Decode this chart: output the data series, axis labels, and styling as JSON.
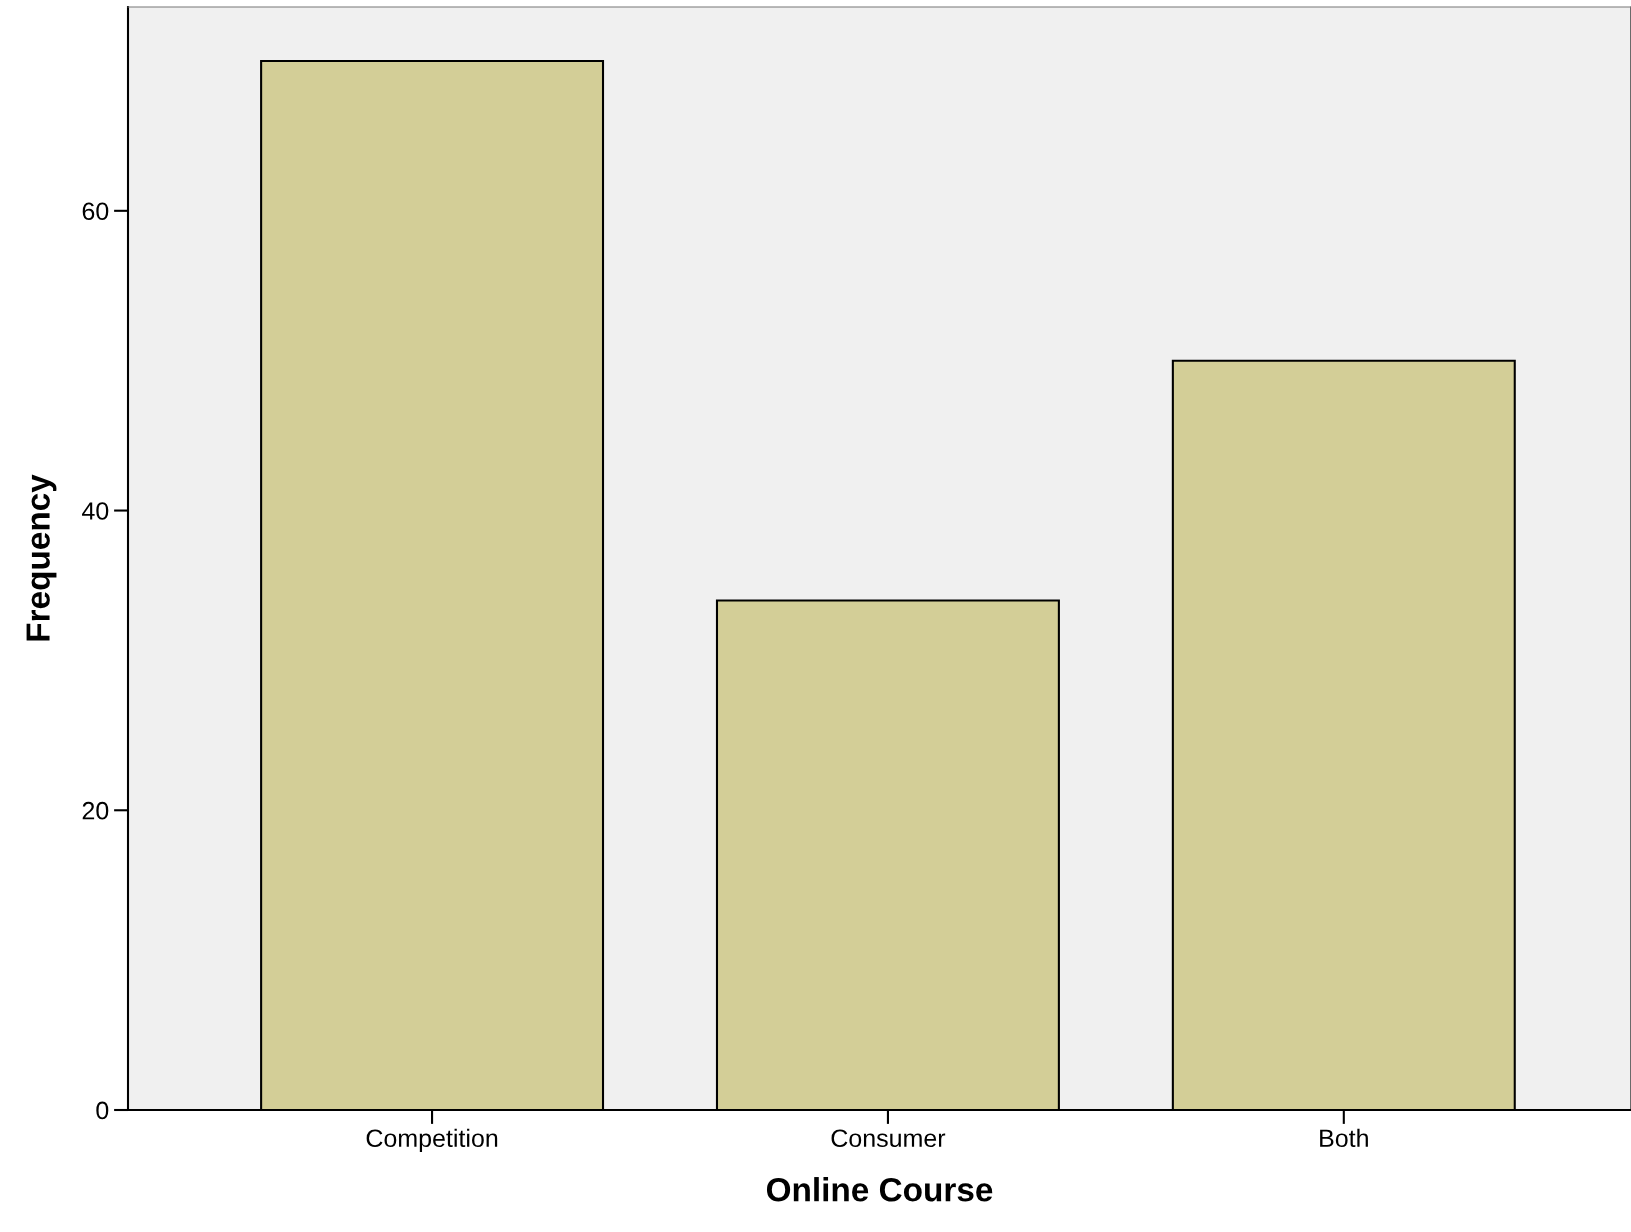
{
  "chart_data": {
    "type": "bar",
    "xlabel": "Online Course",
    "ylabel": "Frequency",
    "categories": [
      "Competition",
      "Consumer",
      "Both"
    ],
    "values": [
      70,
      34,
      50
    ],
    "color": "#d3ce97",
    "ylim": [
      0,
      73.6
    ],
    "yticks": [
      0,
      20,
      40,
      60
    ],
    "grid": false,
    "legend": false
  }
}
